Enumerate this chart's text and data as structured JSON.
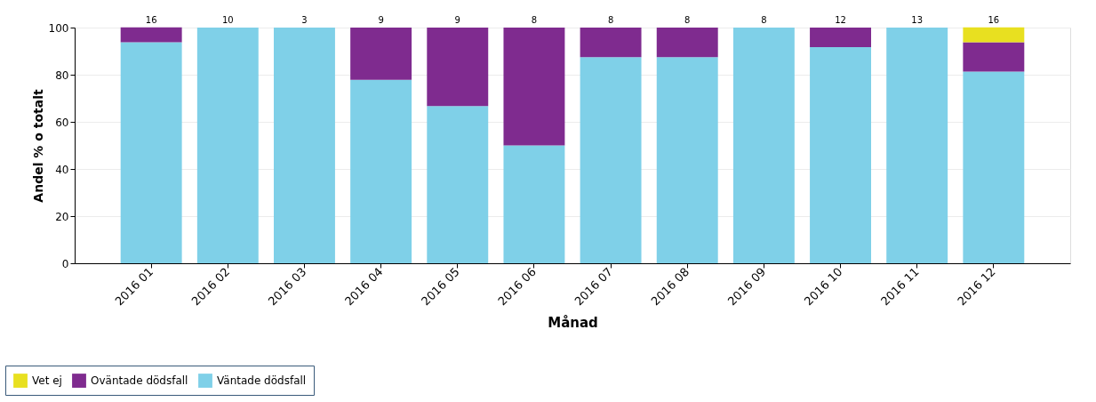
{
  "chart_data": {
    "type": "bar",
    "stacked": true,
    "categories": [
      "2016 01",
      "2016 02",
      "2016 03",
      "2016 04",
      "2016 05",
      "2016 06",
      "2016 07",
      "2016 08",
      "2016 09",
      "2016 10",
      "2016 11",
      "2016 12"
    ],
    "series": [
      {
        "name": "Väntade dödsfall",
        "color": "#7fd0e8",
        "values": [
          93.8,
          100,
          100,
          77.8,
          66.7,
          50,
          87.5,
          87.5,
          100,
          91.7,
          100,
          81.3
        ]
      },
      {
        "name": "Oväntade dödsfall",
        "color": "#7f2b8f",
        "values": [
          6.3,
          null,
          null,
          22.2,
          33.3,
          50,
          12.5,
          12.5,
          null,
          8.3,
          null,
          12.5
        ]
      },
      {
        "name": "Vet ej",
        "color": "#e8e020",
        "values": [
          null,
          null,
          null,
          null,
          null,
          null,
          null,
          null,
          null,
          null,
          null,
          6.3
        ]
      }
    ],
    "annotations": [
      {
        "text": "16",
        "x": "2016 01",
        "y": 100
      },
      {
        "text": "10",
        "x": "2016 02",
        "y": 100
      },
      {
        "text": "3",
        "x": "2016 03",
        "y": 100
      },
      {
        "text": "9",
        "x": "2016 04",
        "y": 100
      },
      {
        "text": "9",
        "x": "2016 05",
        "y": 100
      },
      {
        "text": "8",
        "x": "2016 06",
        "y": 100
      },
      {
        "text": "8",
        "x": "2016 07",
        "y": 100
      },
      {
        "text": "8",
        "x": "2016 08",
        "y": 100
      },
      {
        "text": "8",
        "x": "2016 09",
        "y": 100
      },
      {
        "text": "12",
        "x": "2016 10",
        "y": 100
      },
      {
        "text": "13",
        "x": "2016 11",
        "y": 100
      },
      {
        "text": "16",
        "x": "2016 12",
        "y": 100
      }
    ],
    "xlabel": "Månad",
    "ylabel": "Andel % o totalt",
    "ylim": [
      0,
      100
    ],
    "yticks": [
      0,
      20,
      40,
      60,
      80,
      100
    ],
    "grid": "y",
    "legend": "bottom left"
  }
}
